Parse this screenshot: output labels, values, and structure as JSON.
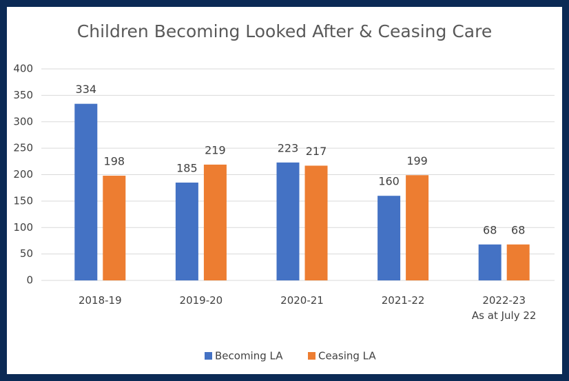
{
  "chart_data": {
    "type": "bar",
    "title": "Children Becoming Looked After & Ceasing Care",
    "categories": [
      "2018-19",
      "2019-20",
      "2020-21",
      "2021-22",
      "2022-23\nAs at July 22"
    ],
    "series": [
      {
        "name": "Becoming LA",
        "color": "#4472c4",
        "values": [
          334,
          185,
          223,
          160,
          68
        ]
      },
      {
        "name": "Ceasing LA",
        "color": "#ed7d31",
        "values": [
          198,
          219,
          217,
          199,
          68
        ]
      }
    ],
    "ylim": [
      0,
      400
    ],
    "yticks": [
      0,
      50,
      100,
      150,
      200,
      250,
      300,
      350,
      400
    ],
    "grid": true,
    "legend": "bottom"
  }
}
